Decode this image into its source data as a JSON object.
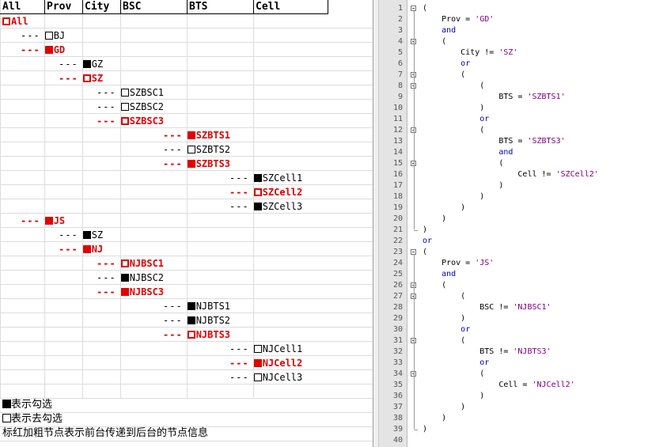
{
  "sheet": {
    "headers": [
      "All",
      "Prov",
      "City",
      "BSC",
      "BTS",
      "Cell"
    ],
    "rows": [
      {
        "level": 0,
        "dashes": "",
        "box": "empty",
        "label": "All",
        "highlight": true
      },
      {
        "level": 1,
        "dashes": "---",
        "box": "empty",
        "label": "BJ",
        "highlight": false
      },
      {
        "level": 1,
        "dashes": "---",
        "box": "filled",
        "label": "GD",
        "highlight": true
      },
      {
        "level": 2,
        "dashes": "---",
        "box": "filled",
        "label": "GZ",
        "highlight": false
      },
      {
        "level": 2,
        "dashes": "---",
        "box": "empty",
        "label": "SZ",
        "highlight": true
      },
      {
        "level": 3,
        "dashes": "---",
        "box": "empty",
        "label": "SZBSC1",
        "highlight": false
      },
      {
        "level": 3,
        "dashes": "---",
        "box": "empty",
        "label": "SZBSC2",
        "highlight": false
      },
      {
        "level": 3,
        "dashes": "---",
        "box": "empty",
        "label": "SZBSC3",
        "highlight": true
      },
      {
        "level": 4,
        "dashes": "---",
        "box": "filled",
        "label": "SZBTS1",
        "highlight": true
      },
      {
        "level": 4,
        "dashes": "---",
        "box": "empty",
        "label": "SZBTS2",
        "highlight": false
      },
      {
        "level": 4,
        "dashes": "---",
        "box": "filled",
        "label": "SZBTS3",
        "highlight": true
      },
      {
        "level": 5,
        "dashes": "---",
        "box": "filled",
        "label": "SZCell1",
        "highlight": false
      },
      {
        "level": 5,
        "dashes": "---",
        "box": "empty",
        "label": "SZCell2",
        "highlight": true
      },
      {
        "level": 5,
        "dashes": "---",
        "box": "filled",
        "label": "SZCell3",
        "highlight": false
      },
      {
        "level": 1,
        "dashes": "---",
        "box": "filled",
        "label": "JS",
        "highlight": true
      },
      {
        "level": 2,
        "dashes": "---",
        "box": "filled",
        "label": "SZ",
        "highlight": false
      },
      {
        "level": 2,
        "dashes": "---",
        "box": "filled",
        "label": "NJ",
        "highlight": true
      },
      {
        "level": 3,
        "dashes": "---",
        "box": "empty",
        "label": "NJBSC1",
        "highlight": true
      },
      {
        "level": 3,
        "dashes": "---",
        "box": "filled",
        "label": "NJBSC2",
        "highlight": false
      },
      {
        "level": 3,
        "dashes": "---",
        "box": "filled",
        "label": "NJBSC3",
        "highlight": true
      },
      {
        "level": 4,
        "dashes": "---",
        "box": "filled",
        "label": "NJBTS1",
        "highlight": false
      },
      {
        "level": 4,
        "dashes": "---",
        "box": "filled",
        "label": "NJBTS2",
        "highlight": false
      },
      {
        "level": 4,
        "dashes": "---",
        "box": "empty",
        "label": "NJBTS3",
        "highlight": true
      },
      {
        "level": 5,
        "dashes": "---",
        "box": "empty",
        "label": "NJCell1",
        "highlight": false
      },
      {
        "level": 5,
        "dashes": "---",
        "box": "filled",
        "label": "NJCell2",
        "highlight": true
      },
      {
        "level": 5,
        "dashes": "---",
        "box": "empty",
        "label": "NJCell3",
        "highlight": false
      }
    ],
    "legend": [
      {
        "box": "filled",
        "text": "表示勾选"
      },
      {
        "box": "empty",
        "text": "表示去勾选"
      },
      {
        "box": "none",
        "text": "标红加粗节点表示前台传递到后台的节点信息"
      }
    ]
  },
  "editor": {
    "lines": [
      {
        "n": "1",
        "text": "("
      },
      {
        "n": "2",
        "text": "    Prov = 'GD'"
      },
      {
        "n": "3",
        "text": "    and"
      },
      {
        "n": "4",
        "text": "    ("
      },
      {
        "n": "5",
        "text": "        City != 'SZ'"
      },
      {
        "n": "6",
        "text": "        or"
      },
      {
        "n": "7",
        "text": "        ("
      },
      {
        "n": "8",
        "text": "            ("
      },
      {
        "n": "9",
        "text": "                BTS = 'SZBTS1'"
      },
      {
        "n": "10",
        "text": "            )"
      },
      {
        "n": "11",
        "text": "            or"
      },
      {
        "n": "12",
        "text": "            ("
      },
      {
        "n": "13",
        "text": "                BTS = 'SZBTS3'"
      },
      {
        "n": "14",
        "text": "                and"
      },
      {
        "n": "15",
        "text": "                ("
      },
      {
        "n": "16",
        "text": "                    Cell != 'SZCell2'"
      },
      {
        "n": "17",
        "text": "                )"
      },
      {
        "n": "18",
        "text": "            )"
      },
      {
        "n": "19",
        "text": "        )"
      },
      {
        "n": "20",
        "text": "    )"
      },
      {
        "n": "21",
        "text": ")"
      },
      {
        "n": "22",
        "text": "or"
      },
      {
        "n": "23",
        "text": "("
      },
      {
        "n": "24",
        "text": "    Prov = 'JS'"
      },
      {
        "n": "25",
        "text": "    and"
      },
      {
        "n": "26",
        "text": "    ("
      },
      {
        "n": "27",
        "text": "        ("
      },
      {
        "n": "28",
        "text": "            BSC != 'NJBSC1'"
      },
      {
        "n": "29",
        "text": "        )"
      },
      {
        "n": "30",
        "text": "        or"
      },
      {
        "n": "31",
        "text": "        ("
      },
      {
        "n": "32",
        "text": "            BTS != 'NJBTS3'"
      },
      {
        "n": "33",
        "text": "            or"
      },
      {
        "n": "34",
        "text": "            ("
      },
      {
        "n": "35",
        "text": "                Cell = 'NJCell2'"
      },
      {
        "n": "36",
        "text": "            )"
      },
      {
        "n": "37",
        "text": "        )"
      },
      {
        "n": "38",
        "text": "    )"
      },
      {
        "n": "39",
        "text": ")"
      },
      {
        "n": "40",
        "text": ""
      }
    ],
    "fold_lines": [
      1,
      4,
      7,
      8,
      12,
      15,
      23,
      26,
      27,
      31,
      34
    ],
    "fold_ends": [
      21,
      39
    ],
    "colors": {
      "keyword": "#0000c0",
      "string": "#800080",
      "highlight": "#e00000"
    }
  }
}
